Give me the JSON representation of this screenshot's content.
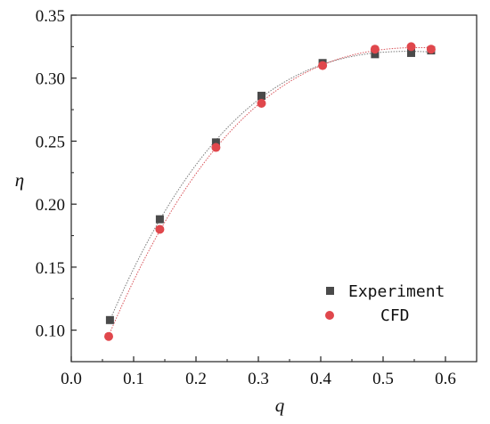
{
  "chart_data": {
    "type": "scatter",
    "title": "",
    "xlabel": "q",
    "ylabel": "η",
    "xlim": [
      0.0,
      0.65
    ],
    "ylim": [
      0.075,
      0.35
    ],
    "xticks": [
      0.0,
      0.1,
      0.2,
      0.3,
      0.4,
      0.5,
      0.6
    ],
    "xtick_labels": [
      "0.0",
      "0.1",
      "0.2",
      "0.3",
      "0.4",
      "0.5",
      "0.6"
    ],
    "yticks": [
      0.1,
      0.15,
      0.2,
      0.25,
      0.3,
      0.35
    ],
    "ytick_labels": [
      "0.10",
      "0.15",
      "0.20",
      "0.25",
      "0.30",
      "0.35"
    ],
    "grid": false,
    "legend_position": "bottom-right",
    "series": [
      {
        "name": "Experiment",
        "marker": "square",
        "color": "#4a4a4a",
        "x": [
          0.062,
          0.142,
          0.232,
          0.305,
          0.403,
          0.487,
          0.545,
          0.577
        ],
        "y": [
          0.108,
          0.188,
          0.249,
          0.286,
          0.312,
          0.319,
          0.32,
          0.322
        ],
        "fit_color": "#7a7a7a"
      },
      {
        "name": "CFD",
        "marker": "circle",
        "color": "#e0474c",
        "x": [
          0.06,
          0.142,
          0.232,
          0.305,
          0.403,
          0.487,
          0.545,
          0.577
        ],
        "y": [
          0.095,
          0.18,
          0.245,
          0.28,
          0.31,
          0.323,
          0.325,
          0.323
        ],
        "fit_color": "#d9545a"
      }
    ]
  }
}
